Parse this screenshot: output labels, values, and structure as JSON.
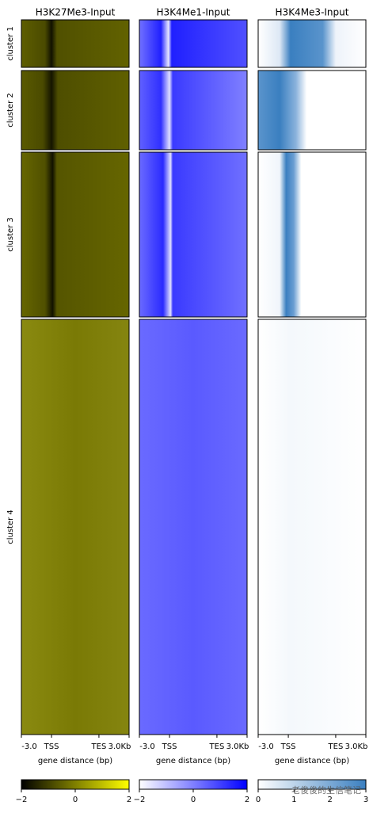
{
  "chart_data": {
    "type": "heatmap",
    "columns": [
      {
        "title": "H3K27Me3-Input",
        "colors": [
          "#000000",
          "#ffff00"
        ],
        "clim": [
          -2,
          2
        ],
        "cticks": [
          {
            "value": -2,
            "label": "−2"
          },
          0,
          2
        ]
      },
      {
        "title": "H3K4Me1-Input",
        "colors": [
          "#ffffff",
          "#0000ff"
        ],
        "clim": [
          -2,
          2
        ],
        "cticks": [
          {
            "value": -2,
            "label": "−2"
          },
          0,
          2
        ]
      },
      {
        "title": "H3K4Me3-Input",
        "colors": [
          "#ffffff",
          "#3a7fc0"
        ],
        "clim": [
          0,
          3
        ],
        "cticks": [
          0,
          1,
          2,
          3
        ]
      }
    ],
    "clusters": [
      "cluster 1",
      "cluster 2",
      "cluster 3",
      "cluster 4"
    ],
    "xticks": [
      "-3.0",
      "TSS",
      "TES",
      "3.0Kb"
    ],
    "xlabel": "gene distance (bp)",
    "watermark": "老俊俊的生信笔记"
  }
}
